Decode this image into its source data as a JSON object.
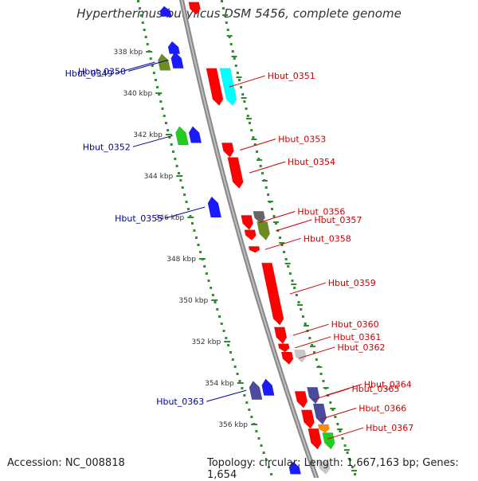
{
  "title": "Hyperthermus butylicus DSM 5456, complete genome",
  "accession": "Accession: NC_008818",
  "topology": "Topology: circular; Length: 1,667,163 bp; Genes: 1,654",
  "ticks": [
    {
      "label": "338 kbp",
      "kbp": 338
    },
    {
      "label": "340 kbp",
      "kbp": 340
    },
    {
      "label": "342 kbp",
      "kbp": 342
    },
    {
      "label": "344 kbp",
      "kbp": 344
    },
    {
      "label": "346 kbp",
      "kbp": 346
    },
    {
      "label": "348 kbp",
      "kbp": 348
    },
    {
      "label": "350 kbp",
      "kbp": 350
    },
    {
      "label": "352 kbp",
      "kbp": 352
    },
    {
      "label": "354 kbp",
      "kbp": 354
    },
    {
      "label": "356 kbp",
      "kbp": 356
    }
  ],
  "genes": [
    {
      "name": "",
      "strand": "minus",
      "color": "#1a1aff",
      "start": 335.8,
      "end": 336.3,
      "dir": "up",
      "track": 0
    },
    {
      "name": "",
      "strand": "plus",
      "color": "#ff0000",
      "start": 335.6,
      "end": 336.2,
      "dir": "down",
      "track": 0
    },
    {
      "name": "",
      "strand": "minus",
      "color": "#1a1aff",
      "start": 337.5,
      "end": 338.1,
      "dir": "up",
      "track": 0
    },
    {
      "name": "Hbut_0349",
      "strand": "minus",
      "color": "#6b8e23",
      "start": 338.1,
      "end": 338.9,
      "dir": "up",
      "track": 1
    },
    {
      "name": "Hbut_0350",
      "strand": "minus",
      "color": "#1a1aff",
      "start": 338.0,
      "end": 338.8,
      "dir": "up",
      "track": 0
    },
    {
      "name": "Hbut_0351",
      "strand": "plus",
      "color": "#ff0000",
      "start": 338.8,
      "end": 340.6,
      "dir": "down",
      "track": 0
    },
    {
      "name": "",
      "strand": "plus",
      "color": "#00ffff",
      "start": 338.8,
      "end": 340.6,
      "dir": "down",
      "track": 1
    },
    {
      "name": "Hbut_0352",
      "strand": "minus",
      "color": "#22cc22",
      "start": 341.6,
      "end": 342.5,
      "dir": "up",
      "track": 1
    },
    {
      "name": "",
      "strand": "minus",
      "color": "#1a1aff",
      "start": 341.6,
      "end": 342.4,
      "dir": "up",
      "track": 0
    },
    {
      "name": "Hbut_0353",
      "strand": "plus",
      "color": "#ff0000",
      "start": 342.4,
      "end": 343.1,
      "dir": "down",
      "track": 0
    },
    {
      "name": "Hbut_0354",
      "strand": "plus",
      "color": "#ff0000",
      "start": 343.1,
      "end": 344.6,
      "dir": "down",
      "track": 0
    },
    {
      "name": "Hbut_0355",
      "strand": "minus",
      "color": "#1a1aff",
      "start": 345.0,
      "end": 346.0,
      "dir": "up",
      "track": 0
    },
    {
      "name": "Hbut_0356",
      "strand": "plus",
      "color": "#ff0000",
      "start": 345.9,
      "end": 346.6,
      "dir": "down",
      "track": 0
    },
    {
      "name": "",
      "strand": "plus",
      "color": "#666666",
      "start": 345.7,
      "end": 346.3,
      "dir": "down",
      "track": 1
    },
    {
      "name": "Hbut_0357",
      "strand": "plus",
      "color": "#6b8e23",
      "start": 346.2,
      "end": 347.1,
      "dir": "down",
      "track": 1
    },
    {
      "name": "",
      "strand": "plus",
      "color": "#ff0000",
      "start": 346.6,
      "end": 347.1,
      "dir": "down",
      "track": 0
    },
    {
      "name": "Hbut_0358",
      "strand": "plus",
      "color": "#ff0000",
      "start": 347.4,
      "end": 347.7,
      "dir": "down",
      "track": 0
    },
    {
      "name": "Hbut_0359",
      "strand": "plus",
      "color": "#ff0000",
      "start": 348.2,
      "end": 351.2,
      "dir": "down",
      "track": 0
    },
    {
      "name": "Hbut_0360",
      "strand": "plus",
      "color": "#ff0000",
      "start": 351.3,
      "end": 352.1,
      "dir": "down",
      "track": 0
    },
    {
      "name": "Hbut_0361",
      "strand": "plus",
      "color": "#ff0000",
      "start": 352.1,
      "end": 352.5,
      "dir": "down",
      "track": 0
    },
    {
      "name": "Hbut_0362",
      "strand": "plus",
      "color": "#ff0000",
      "start": 352.5,
      "end": 353.1,
      "dir": "down",
      "track": 0
    },
    {
      "name": "",
      "strand": "plus",
      "color": "#c8c8c8",
      "start": 352.4,
      "end": 353.0,
      "dir": "down",
      "track": 1
    },
    {
      "name": "Hbut_0363",
      "strand": "minus",
      "color": "#4b4b9e",
      "start": 353.9,
      "end": 354.8,
      "dir": "up",
      "track": 1
    },
    {
      "name": "",
      "strand": "minus",
      "color": "#1a1aff",
      "start": 353.8,
      "end": 354.6,
      "dir": "up",
      "track": 0
    },
    {
      "name": "Hbut_0364",
      "strand": "plus",
      "color": "#4b4b9e",
      "start": 354.2,
      "end": 355.0,
      "dir": "down",
      "track": 1
    },
    {
      "name": "Hbut_0365",
      "strand": "plus",
      "color": "#ff0000",
      "start": 354.4,
      "end": 355.2,
      "dir": "down",
      "track": 0
    },
    {
      "name": "",
      "strand": "plus",
      "color": "#4b4b9e",
      "start": 355.0,
      "end": 356.0,
      "dir": "down",
      "track": 1
    },
    {
      "name": "Hbut_0366",
      "strand": "plus",
      "color": "#ff0000",
      "start": 355.3,
      "end": 356.2,
      "dir": "down",
      "track": 0
    },
    {
      "name": "",
      "strand": "plus",
      "color": "#ff8c00",
      "start": 356.0,
      "end": 356.4,
      "dir": "down",
      "track": 1
    },
    {
      "name": "Hbut_0367",
      "strand": "plus",
      "color": "#ff0000",
      "start": 356.2,
      "end": 357.2,
      "dir": "down",
      "track": 0
    },
    {
      "name": "",
      "strand": "plus",
      "color": "#22cc22",
      "start": 356.4,
      "end": 357.2,
      "dir": "down",
      "track": 1
    },
    {
      "name": "",
      "strand": "minus",
      "color": "#1a1aff",
      "start": 357.8,
      "end": 358.4,
      "dir": "up",
      "track": 0
    },
    {
      "name": "",
      "strand": "plus",
      "color": "#c8c8c8",
      "start": 357.8,
      "end": 358.4,
      "dir": "down",
      "track": 0
    }
  ],
  "colors": {
    "plus_label": "#cc0000",
    "minus_label": "#000099",
    "ruler": "#2e8b2e",
    "backbone": "#888888",
    "text": "#333333"
  }
}
